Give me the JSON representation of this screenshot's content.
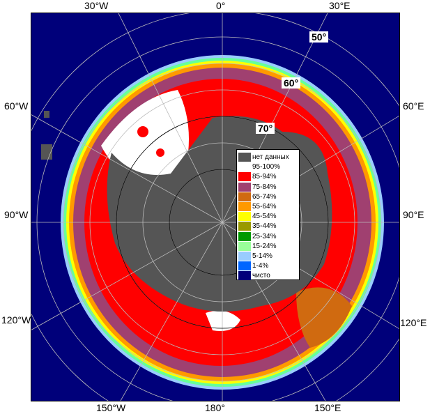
{
  "map": {
    "longitude_labels": {
      "top_left": "30°W",
      "top_center": "0°",
      "top_right": "30°E",
      "left_upper": "60°W",
      "left_middle": "90°W",
      "left_lower": "120°W",
      "right_upper": "60°E",
      "right_middle": "90°E",
      "right_lower": "120°E",
      "bottom_left": "150°W",
      "bottom_center": "180°",
      "bottom_right": "150°E"
    },
    "latitude_labels": [
      "50°",
      "60°",
      "70°"
    ],
    "colors": {
      "ocean": "#00007a",
      "land_no_data": "#555555",
      "ice_high": "#ff0000",
      "ice_75": "#a04070",
      "ice_full": "#ffffff",
      "ice_65": "#d06a10",
      "ice_55": "#ff9900",
      "edge_yellow": "#ffff00",
      "edge_green": "#66ff99",
      "edge_lightblue": "#99ccff"
    }
  },
  "legend": {
    "items": [
      {
        "label": "нет данных",
        "color": "#555555"
      },
      {
        "label": "95-100%",
        "color": "#ffffff"
      },
      {
        "label": "85-94%",
        "color": "#ff0000"
      },
      {
        "label": "75-84%",
        "color": "#a04070"
      },
      {
        "label": "65-74%",
        "color": "#d06a10"
      },
      {
        "label": "55-64%",
        "color": "#ff9900"
      },
      {
        "label": "45-54%",
        "color": "#ffff00"
      },
      {
        "label": "35-44%",
        "color": "#999900"
      },
      {
        "label": "25-34%",
        "color": "#009900"
      },
      {
        "label": "15-24%",
        "color": "#99ff99"
      },
      {
        "label": "5-14%",
        "color": "#99ccff"
      },
      {
        "label": "1-4%",
        "color": "#0066ff"
      },
      {
        "label": "чисто",
        "color": "#00007a"
      }
    ]
  }
}
